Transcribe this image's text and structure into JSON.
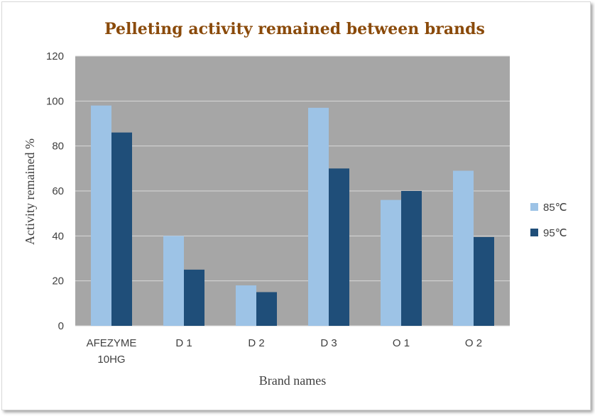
{
  "chart_data": {
    "type": "bar",
    "title": "Pelleting activity remained between brands",
    "xlabel": "Brand names",
    "ylabel": "Activity remained %",
    "categories": [
      [
        "AFEZYME",
        "10HG"
      ],
      [
        "D 1"
      ],
      [
        "D 2"
      ],
      [
        "D 3"
      ],
      [
        "O 1"
      ],
      [
        "O 2"
      ]
    ],
    "series": [
      {
        "name": "85℃",
        "color": "#9dc3e6",
        "values": [
          98,
          40,
          18,
          97,
          56,
          69
        ]
      },
      {
        "name": "95℃",
        "color": "#1f4e79",
        "values": [
          86,
          25,
          15,
          70,
          60,
          39.5
        ]
      }
    ],
    "ylim": [
      0,
      120
    ],
    "yticks": [
      0,
      20,
      40,
      60,
      80,
      100,
      120
    ],
    "grid": true,
    "plot_background": "#a6a6a6",
    "gridline_color": "#d9d9d9",
    "legend_position": "right"
  }
}
